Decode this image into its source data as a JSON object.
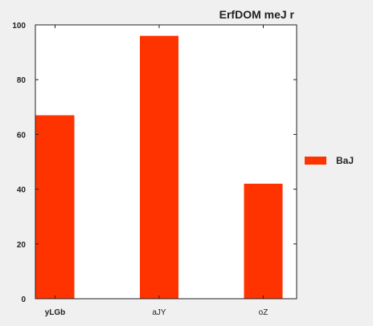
{
  "chart_data": {
    "type": "bar",
    "title": "ErfDOM meJ r",
    "categories": [
      "yLGb",
      "aJY",
      "oZ"
    ],
    "series": [
      {
        "name": "BaJ",
        "values": [
          67,
          96,
          42
        ],
        "color": "#ff3300"
      }
    ],
    "ylim": [
      0,
      100
    ],
    "yticks": [
      0,
      20,
      40,
      60,
      80,
      100
    ],
    "xlabel": "",
    "ylabel": "",
    "grid": false,
    "legend": {
      "placement": "right"
    },
    "colors": {
      "background": "#f0f0f0",
      "plot_background": "#ffffff",
      "axis": "#222222"
    }
  }
}
